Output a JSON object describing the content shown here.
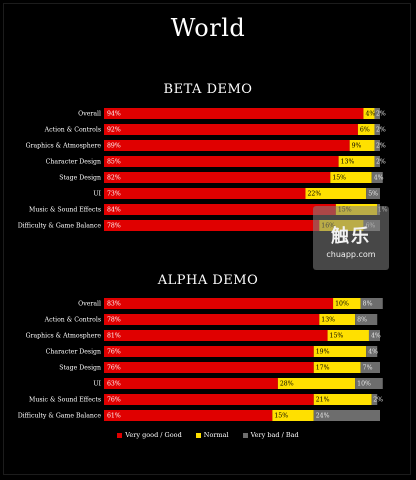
{
  "title": "World",
  "colors": {
    "good": "#e00000",
    "normal": "#ffe000",
    "bad": "#6d6d6d"
  },
  "legend": [
    "Very good / Good",
    "Normal",
    "Very bad / Bad"
  ],
  "chart_data": [
    {
      "type": "bar",
      "stacked": true,
      "orientation": "horizontal",
      "title": "BETA DEMO",
      "categories": [
        "Overall",
        "Action & Controls",
        "Graphics & Atmosphere",
        "Character Design",
        "Stage Design",
        "UI",
        "Music & Sound Effects",
        "Difficulty & Game Balance"
      ],
      "series": [
        {
          "name": "Very good / Good",
          "values": [
            94,
            92,
            89,
            85,
            82,
            73,
            84,
            78
          ]
        },
        {
          "name": "Normal",
          "values": [
            4,
            6,
            9,
            13,
            15,
            22,
            15,
            16
          ]
        },
        {
          "name": "Very bad / Bad",
          "values": [
            2,
            2,
            2,
            2,
            4,
            5,
            1,
            6
          ]
        }
      ],
      "labels": {
        "good": [
          "94%",
          "92%",
          "89%",
          "85%",
          "82%",
          "73%",
          "84%",
          "78%"
        ],
        "normal": [
          "4%",
          "6%",
          "9%",
          "13%",
          "15%",
          "22%",
          "15%",
          "16%"
        ],
        "bad": [
          "2%",
          "2%",
          "2%",
          "2%",
          "4%",
          "5%",
          "1%",
          "6%"
        ]
      },
      "xlim": [
        0,
        100
      ],
      "legend_position": "bottom"
    },
    {
      "type": "bar",
      "stacked": true,
      "orientation": "horizontal",
      "title": "ALPHA DEMO",
      "categories": [
        "Overall",
        "Action & Controls",
        "Graphics & Atmosphere",
        "Character Design",
        "Stage Design",
        "UI",
        "Music & Sound Effects",
        "Difficulty & Game Balance"
      ],
      "series": [
        {
          "name": "Very good / Good",
          "values": [
            83,
            78,
            81,
            76,
            76,
            63,
            76,
            61
          ]
        },
        {
          "name": "Normal",
          "values": [
            10,
            13,
            15,
            19,
            17,
            28,
            21,
            15
          ]
        },
        {
          "name": "Very bad / Bad",
          "values": [
            8,
            8,
            4,
            4,
            7,
            10,
            2,
            24
          ]
        }
      ],
      "labels": {
        "good": [
          "83%",
          "78%",
          "81%",
          "76%",
          "76%",
          "63%",
          "76%",
          "61%"
        ],
        "normal": [
          "10%",
          "13%",
          "15%",
          "19%",
          "17%",
          "28%",
          "21%",
          "15%"
        ],
        "bad": [
          "8%",
          "8%",
          "4%",
          "4%",
          "7%",
          "10%",
          "2%",
          "24%"
        ]
      },
      "xlim": [
        0,
        100
      ],
      "legend_position": "bottom"
    }
  ],
  "watermark": {
    "logo": "触乐",
    "site": "chuapp.com"
  }
}
